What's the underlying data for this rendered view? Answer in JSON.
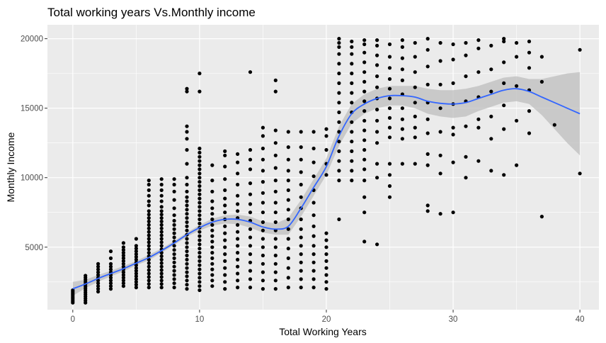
{
  "chart_data": {
    "type": "scatter",
    "title": "Total working years Vs.Monthly income",
    "xlabel": "Total Working Years",
    "ylabel": "Monthly Income",
    "xlim": [
      -2,
      41.5
    ],
    "ylim": [
      500,
      21000
    ],
    "xticks": [
      0,
      10,
      20,
      30,
      40
    ],
    "yticks": [
      5000,
      10000,
      15000,
      20000
    ],
    "grid": true,
    "panel_color": "#ebebeb",
    "grid_color": "#ffffff",
    "point_color": "#000000",
    "smooth_color": "#3366ff",
    "band_color": "#bebebe",
    "smooth_curve": [
      [
        0,
        2000
      ],
      [
        1,
        2350
      ],
      [
        2,
        2750
      ],
      [
        3,
        3100
      ],
      [
        4,
        3450
      ],
      [
        5,
        3850
      ],
      [
        6,
        4250
      ],
      [
        7,
        4750
      ],
      [
        8,
        5300
      ],
      [
        9,
        5900
      ],
      [
        10,
        6400
      ],
      [
        11,
        6800
      ],
      [
        12,
        7000
      ],
      [
        13,
        7000
      ],
      [
        14,
        6800
      ],
      [
        15,
        6450
      ],
      [
        16,
        6300
      ],
      [
        17,
        6500
      ],
      [
        18,
        7800
      ],
      [
        19,
        9300
      ],
      [
        20,
        10800
      ],
      [
        21,
        13000
      ],
      [
        22,
        14600
      ],
      [
        23,
        15300
      ],
      [
        24,
        15700
      ],
      [
        25,
        15900
      ],
      [
        26,
        15900
      ],
      [
        27,
        15800
      ],
      [
        28,
        15500
      ],
      [
        29,
        15350
      ],
      [
        30,
        15300
      ],
      [
        31,
        15400
      ],
      [
        32,
        15700
      ],
      [
        33,
        16000
      ],
      [
        34,
        16300
      ],
      [
        35,
        16400
      ],
      [
        36,
        16200
      ],
      [
        37,
        15800
      ],
      [
        38,
        15400
      ],
      [
        39,
        15000
      ],
      [
        40,
        14600
      ]
    ],
    "band_upper": [
      [
        0,
        2500
      ],
      [
        1,
        2650
      ],
      [
        2,
        3000
      ],
      [
        3,
        3300
      ],
      [
        4,
        3650
      ],
      [
        5,
        4000
      ],
      [
        6,
        4450
      ],
      [
        7,
        4900
      ],
      [
        8,
        5450
      ],
      [
        9,
        6050
      ],
      [
        10,
        6600
      ],
      [
        11,
        7050
      ],
      [
        12,
        7300
      ],
      [
        13,
        7350
      ],
      [
        14,
        7200
      ],
      [
        15,
        6850
      ],
      [
        16,
        6700
      ],
      [
        17,
        7100
      ],
      [
        18,
        8400
      ],
      [
        19,
        9900
      ],
      [
        20,
        11400
      ],
      [
        21,
        13700
      ],
      [
        22,
        15300
      ],
      [
        23,
        16000
      ],
      [
        24,
        16400
      ],
      [
        25,
        16600
      ],
      [
        26,
        16600
      ],
      [
        27,
        16600
      ],
      [
        28,
        16400
      ],
      [
        29,
        16300
      ],
      [
        30,
        16300
      ],
      [
        31,
        16400
      ],
      [
        32,
        16600
      ],
      [
        33,
        16900
      ],
      [
        34,
        17200
      ],
      [
        35,
        17300
      ],
      [
        36,
        17100
      ],
      [
        37,
        17100
      ],
      [
        38,
        17300
      ],
      [
        39,
        17500
      ],
      [
        40,
        17600
      ]
    ],
    "band_lower": [
      [
        0,
        1500
      ],
      [
        1,
        2050
      ],
      [
        2,
        2500
      ],
      [
        3,
        2900
      ],
      [
        4,
        3250
      ],
      [
        5,
        3700
      ],
      [
        6,
        4050
      ],
      [
        7,
        4600
      ],
      [
        8,
        5150
      ],
      [
        9,
        5750
      ],
      [
        10,
        6200
      ],
      [
        11,
        6550
      ],
      [
        12,
        6700
      ],
      [
        13,
        6650
      ],
      [
        14,
        6400
      ],
      [
        15,
        6050
      ],
      [
        16,
        5900
      ],
      [
        17,
        5900
      ],
      [
        18,
        7200
      ],
      [
        19,
        8700
      ],
      [
        20,
        10200
      ],
      [
        21,
        12300
      ],
      [
        22,
        13900
      ],
      [
        23,
        14600
      ],
      [
        24,
        15000
      ],
      [
        25,
        15200
      ],
      [
        26,
        15200
      ],
      [
        27,
        15000
      ],
      [
        28,
        14600
      ],
      [
        29,
        14400
      ],
      [
        30,
        14300
      ],
      [
        31,
        14400
      ],
      [
        32,
        14800
      ],
      [
        33,
        15100
      ],
      [
        34,
        15400
      ],
      [
        35,
        15500
      ],
      [
        36,
        15300
      ],
      [
        37,
        14500
      ],
      [
        38,
        13500
      ],
      [
        39,
        12500
      ],
      [
        40,
        11600
      ]
    ],
    "point_columns": [
      {
        "x": 0,
        "values": [
          1000,
          1100,
          1200,
          1300,
          1400,
          1500,
          1600,
          1700,
          1800,
          1900
        ]
      },
      {
        "x": 1,
        "values": [
          1000,
          1150,
          1300,
          1450,
          1600,
          1750,
          1900,
          2050,
          2200,
          2350,
          2500,
          2650,
          2800,
          2950
        ]
      },
      {
        "x": 2,
        "values": [
          1800,
          2000,
          2200,
          2400,
          2600,
          2800,
          3000,
          3200,
          3400,
          3600,
          3800
        ]
      },
      {
        "x": 3,
        "values": [
          2000,
          2200,
          2400,
          2600,
          2800,
          3000,
          3200,
          3400,
          3600,
          3800,
          4200,
          4700
        ]
      },
      {
        "x": 4,
        "values": [
          2200,
          2400,
          2600,
          2800,
          3000,
          3200,
          3400,
          3600,
          3800,
          4000,
          4200,
          4400,
          4600,
          4800,
          5000,
          5300
        ]
      },
      {
        "x": 5,
        "values": [
          2100,
          2300,
          2500,
          2700,
          2900,
          3100,
          3300,
          3500,
          3700,
          3900,
          4100,
          4300,
          4500,
          4700,
          4900,
          5100,
          5600
        ]
      },
      {
        "x": 6,
        "values": [
          2100,
          2350,
          2600,
          2850,
          3100,
          3350,
          3600,
          3850,
          4100,
          4350,
          4600,
          4850,
          5100,
          5350,
          5600,
          5850,
          6100,
          6350,
          6600,
          6850,
          7100,
          7350,
          7600,
          8000,
          8300,
          8700,
          9100,
          9500,
          9800
        ]
      },
      {
        "x": 7,
        "values": [
          2100,
          2350,
          2600,
          2850,
          3100,
          3350,
          3600,
          3850,
          4100,
          4350,
          4600,
          4850,
          5100,
          5350,
          5600,
          5850,
          6100,
          6350,
          6600,
          6850,
          7100,
          7350,
          7600,
          7900,
          8300,
          8700,
          9100,
          9500,
          9900
        ]
      },
      {
        "x": 8,
        "values": [
          2100,
          2400,
          2700,
          3000,
          3300,
          3600,
          3900,
          4200,
          4500,
          4800,
          5100,
          5400,
          5700,
          6000,
          6300,
          6600,
          6900,
          7300,
          7800,
          8400,
          9000,
          9500,
          9900
        ]
      },
      {
        "x": 9,
        "values": [
          2000,
          2300,
          2600,
          2900,
          3200,
          3500,
          3800,
          4100,
          4400,
          4700,
          5000,
          5300,
          5600,
          5900,
          6200,
          6500,
          6800,
          7100,
          7400,
          7700,
          8000,
          8300,
          8600,
          9000,
          9500,
          10000,
          11000,
          12000,
          12800,
          13300,
          13700,
          16200,
          16400
        ]
      },
      {
        "x": 10,
        "values": [
          1900,
          2200,
          2500,
          2800,
          3100,
          3400,
          3700,
          4000,
          4300,
          4600,
          4900,
          5200,
          5500,
          5800,
          6100,
          6400,
          6700,
          7000,
          7300,
          7600,
          7900,
          8200,
          8500,
          8800,
          9100,
          9400,
          9700,
          10000,
          10300,
          10600,
          10900,
          11200,
          11500,
          11800,
          12100,
          16200,
          17500
        ]
      },
      {
        "x": 11,
        "values": [
          2200,
          2600,
          3000,
          3400,
          3800,
          4200,
          4600,
          5000,
          5400,
          5800,
          6200,
          6600,
          7000,
          7400,
          7800,
          8300,
          9000,
          9800,
          10900
        ]
      },
      {
        "x": 12,
        "values": [
          2000,
          2500,
          3000,
          3500,
          4000,
          4500,
          5000,
          5500,
          6000,
          6500,
          7000,
          7500,
          8000,
          8500,
          9100,
          9900,
          10800,
          11600,
          11900
        ]
      },
      {
        "x": 13,
        "values": [
          2100,
          2600,
          3100,
          3600,
          4100,
          4600,
          5100,
          5600,
          6100,
          6600,
          7100,
          7600,
          8100,
          8700,
          9500,
          10300,
          11100,
          11700
        ]
      },
      {
        "x": 14,
        "values": [
          2100,
          2700,
          3300,
          3900,
          4500,
          5100,
          5700,
          6300,
          6900,
          7500,
          8100,
          8800,
          9600,
          10600,
          11300,
          12000,
          17600
        ]
      },
      {
        "x": 15,
        "values": [
          2000,
          2600,
          3200,
          3800,
          4400,
          5000,
          5600,
          6200,
          6800,
          7500,
          8200,
          8900,
          9700,
          10500,
          11300,
          12100,
          13000,
          13600
        ]
      },
      {
        "x": 16,
        "values": [
          2000,
          2600,
          3200,
          3800,
          4400,
          5000,
          5600,
          6200,
          6800,
          7500,
          8200,
          9000,
          9800,
          10700,
          11600,
          12500,
          13400,
          16200,
          17000
        ]
      },
      {
        "x": 17,
        "values": [
          2100,
          2800,
          3500,
          4200,
          4900,
          5600,
          6300,
          7000,
          7700,
          8400,
          9100,
          9800,
          10500,
          11300,
          12200,
          13300
        ]
      },
      {
        "x": 18,
        "values": [
          2100,
          2700,
          3300,
          3900,
          4500,
          5100,
          5700,
          6300,
          7000,
          7800,
          8600,
          9500,
          10400,
          11300,
          12200,
          13300
        ]
      },
      {
        "x": 19,
        "values": [
          2100,
          2700,
          3300,
          3900,
          4500,
          5100,
          5800,
          6500,
          7300,
          8200,
          9100,
          10100,
          11100,
          12100,
          13300
        ]
      },
      {
        "x": 20,
        "values": [
          2000,
          2500,
          3000,
          3500,
          4000,
          4500,
          5000,
          5500,
          6000,
          10200,
          11000,
          12000,
          13000,
          13500
        ]
      },
      {
        "x": 21,
        "values": [
          7000,
          9800,
          10500,
          11200,
          11900,
          12600,
          13300,
          14000,
          14700,
          15400,
          16100,
          16800,
          17500,
          18200,
          18900,
          19400,
          19700,
          20000
        ]
      },
      {
        "x": 22,
        "values": [
          9800,
          10500,
          11200,
          11900,
          12600,
          13300,
          14000,
          14700,
          15400,
          16100,
          16800,
          17500,
          18200,
          18900,
          19400,
          19800
        ]
      },
      {
        "x": 23,
        "values": [
          5400,
          7500,
          8600,
          9800,
          10600,
          11300,
          12000,
          12700,
          13400,
          14100,
          14800,
          15500,
          16200,
          16900,
          17600,
          18300,
          19000,
          19600,
          19900
        ]
      },
      {
        "x": 24,
        "values": [
          5200,
          10000,
          11000,
          12500,
          13300,
          14100,
          14900,
          15700,
          16500,
          17300,
          18100,
          18800,
          19500,
          19900
        ]
      },
      {
        "x": 25,
        "values": [
          8600,
          9400,
          10200,
          11000,
          12900,
          13600,
          14300,
          15000,
          15700,
          16400,
          17100,
          17900,
          18700,
          19600
        ]
      },
      {
        "x": 26,
        "values": [
          11000,
          12800,
          13500,
          14200,
          15000,
          16000,
          17000,
          17800,
          18600,
          19400,
          19900
        ]
      },
      {
        "x": 27,
        "values": [
          11000,
          12900,
          13600,
          14400,
          15400,
          16500,
          17600,
          18700,
          19700
        ]
      },
      {
        "x": 28,
        "values": [
          7600,
          8000,
          10900,
          11700,
          13200,
          14200,
          15400,
          16700,
          18000,
          19200,
          20000
        ]
      },
      {
        "x": 29,
        "values": [
          7400,
          10300,
          11600,
          13300,
          15000,
          16700,
          18400,
          19700
        ]
      },
      {
        "x": 30,
        "values": [
          7500,
          11100,
          13100,
          13600,
          15300,
          16800,
          18500,
          19600
        ]
      },
      {
        "x": 31,
        "values": [
          10000,
          11500,
          13700,
          15500,
          17300,
          18800,
          19700
        ]
      },
      {
        "x": 32,
        "values": [
          11200,
          13600,
          14200,
          15800,
          17600,
          19300,
          19900
        ]
      },
      {
        "x": 33,
        "values": [
          10500,
          12800,
          14400,
          16200,
          17800,
          19500
        ]
      },
      {
        "x": 34,
        "values": [
          10200,
          13500,
          15200,
          16800,
          18300,
          19800,
          20000
        ]
      },
      {
        "x": 35,
        "values": [
          10900,
          14100,
          16600,
          18700,
          19700
        ]
      },
      {
        "x": 36,
        "values": [
          13200,
          14800,
          16300,
          17900,
          19000,
          19800
        ]
      },
      {
        "x": 37,
        "values": [
          7200,
          16900,
          18700
        ]
      },
      {
        "x": 38,
        "values": [
          13800
        ]
      },
      {
        "x": 40,
        "values": [
          10300,
          19200
        ]
      }
    ]
  }
}
